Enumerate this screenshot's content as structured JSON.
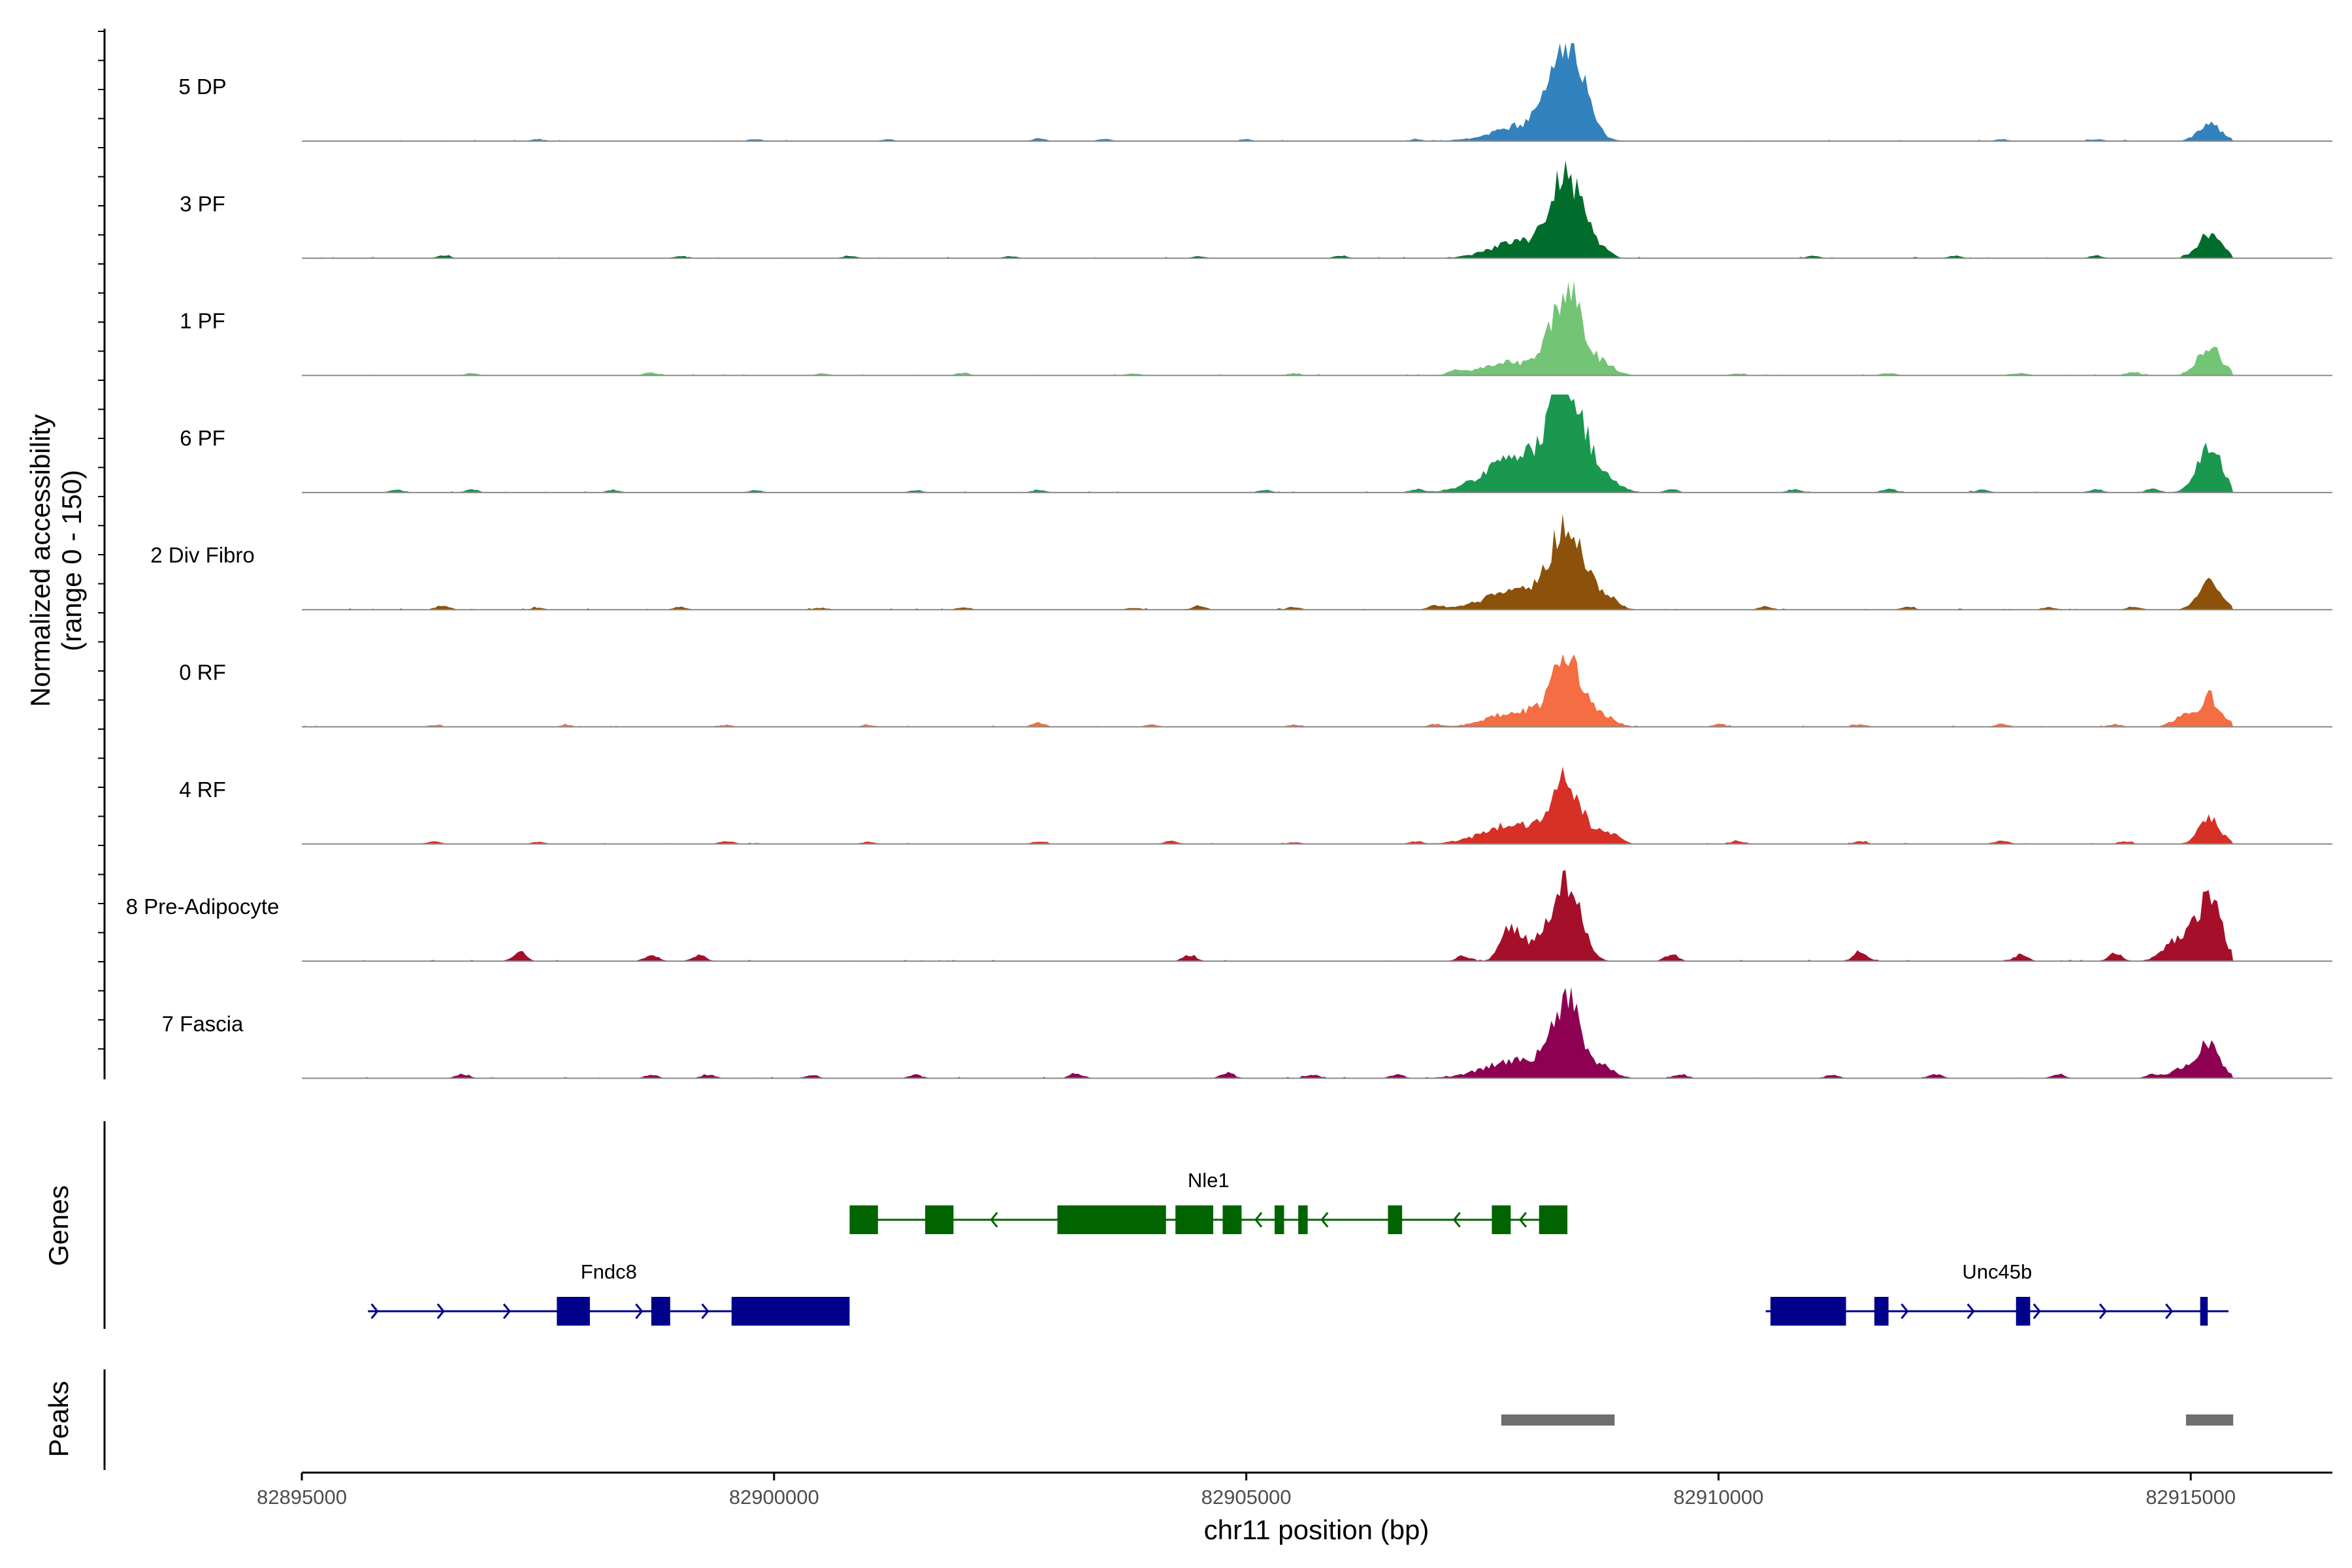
{
  "chart_data": {
    "type": "area",
    "region": {
      "chrom": "chr11",
      "start": 82895000,
      "end": 82916500
    },
    "xlabel": "chr11 position (bp)",
    "x_ticks": [
      82895000,
      82900000,
      82905000,
      82910000,
      82915000
    ],
    "x_tick_labels": [
      "82895000",
      "82900000",
      "82905000",
      "82910000",
      "82915000"
    ],
    "coverage_axis_title": [
      "Normalized accessibility",
      "(range 0 - 150)"
    ],
    "coverage_range": [
      0,
      150
    ],
    "genes_axis_title": "Genes",
    "peaks_axis_title": "Peaks",
    "tracks": [
      {
        "name": "5 DP",
        "color": "#3182bd",
        "peaks": [
          [
            82908400,
            150,
            170
          ],
          [
            82908000,
            25,
            350
          ],
          [
            82915200,
            25,
            120
          ]
        ],
        "bumps": [
          [
            82897500,
            3
          ],
          [
            82899800,
            3
          ],
          [
            82901200,
            3
          ],
          [
            82902800,
            4
          ],
          [
            82903500,
            3
          ],
          [
            82905000,
            3
          ],
          [
            82906800,
            3
          ],
          [
            82913000,
            3
          ],
          [
            82914000,
            3
          ]
        ]
      },
      {
        "name": "3 PF",
        "color": "#006d2c",
        "peaks": [
          [
            82908400,
            125,
            170
          ],
          [
            82907900,
            25,
            300
          ],
          [
            82915200,
            38,
            120
          ]
        ],
        "bumps": [
          [
            82896500,
            4
          ],
          [
            82899000,
            3
          ],
          [
            82900800,
            4
          ],
          [
            82902500,
            3
          ],
          [
            82904500,
            3
          ],
          [
            82906000,
            4
          ],
          [
            82908800,
            10
          ],
          [
            82911000,
            4
          ],
          [
            82912500,
            4
          ],
          [
            82914000,
            4
          ]
        ]
      },
      {
        "name": "1 PF",
        "color": "#74c476",
        "peaks": [
          [
            82908400,
            128,
            160
          ],
          [
            82907800,
            20,
            300
          ],
          [
            82908800,
            15,
            120
          ],
          [
            82915200,
            45,
            120
          ]
        ],
        "bumps": [
          [
            82896800,
            3
          ],
          [
            82898700,
            4
          ],
          [
            82900500,
            3
          ],
          [
            82902000,
            4
          ],
          [
            82903800,
            3
          ],
          [
            82905500,
            3
          ],
          [
            82907200,
            5
          ],
          [
            82910200,
            3
          ],
          [
            82911800,
            4
          ],
          [
            82913200,
            4
          ],
          [
            82914400,
            5
          ]
        ]
      },
      {
        "name": "6 PF",
        "color": "#1a9850",
        "peaks": [
          [
            82908400,
            150,
            180
          ],
          [
            82907900,
            55,
            350
          ],
          [
            82908800,
            18,
            150
          ],
          [
            82915200,
            68,
            130
          ]
        ],
        "bumps": [
          [
            82896000,
            4
          ],
          [
            82896800,
            5
          ],
          [
            82898300,
            4
          ],
          [
            82899800,
            4
          ],
          [
            82901500,
            4
          ],
          [
            82902800,
            4
          ],
          [
            82905200,
            4
          ],
          [
            82906800,
            5
          ],
          [
            82909500,
            5
          ],
          [
            82910800,
            5
          ],
          [
            82911800,
            6
          ],
          [
            82912800,
            5
          ],
          [
            82914000,
            5
          ],
          [
            82914600,
            6
          ]
        ]
      },
      {
        "name": "2 Div Fibro",
        "color": "#8c510a",
        "peaks": [
          [
            82908400,
            118,
            170
          ],
          [
            82907900,
            30,
            350
          ],
          [
            82908800,
            20,
            120
          ],
          [
            82915200,
            40,
            120
          ]
        ],
        "bumps": [
          [
            82896500,
            7
          ],
          [
            82897500,
            3
          ],
          [
            82899000,
            4
          ],
          [
            82900500,
            3
          ],
          [
            82902000,
            4
          ],
          [
            82903800,
            3
          ],
          [
            82904500,
            6
          ],
          [
            82905500,
            4
          ],
          [
            82907000,
            6
          ],
          [
            82910500,
            5
          ],
          [
            82912000,
            4
          ],
          [
            82913500,
            4
          ],
          [
            82914400,
            5
          ]
        ]
      },
      {
        "name": "0 RF",
        "color": "#f46d43",
        "peaks": [
          [
            82908400,
            115,
            150
          ],
          [
            82907900,
            25,
            300
          ],
          [
            82908800,
            15,
            120
          ],
          [
            82915200,
            45,
            120
          ],
          [
            82914900,
            15,
            100
          ]
        ],
        "bumps": [
          [
            82896400,
            3
          ],
          [
            82897800,
            3
          ],
          [
            82899500,
            3
          ],
          [
            82901000,
            3
          ],
          [
            82902800,
            6
          ],
          [
            82904000,
            3
          ],
          [
            82905500,
            3
          ],
          [
            82907000,
            4
          ],
          [
            82910000,
            4
          ],
          [
            82911500,
            4
          ],
          [
            82913000,
            5
          ],
          [
            82914200,
            4
          ]
        ]
      },
      {
        "name": "4 RF",
        "color": "#d73027",
        "peaks": [
          [
            82908400,
            90,
            140
          ],
          [
            82907900,
            32,
            350
          ],
          [
            82908800,
            20,
            120
          ],
          [
            82915200,
            38,
            110
          ]
        ],
        "bumps": [
          [
            82896400,
            4
          ],
          [
            82897500,
            3
          ],
          [
            82899500,
            5
          ],
          [
            82901000,
            3
          ],
          [
            82902800,
            4
          ],
          [
            82904200,
            5
          ],
          [
            82905500,
            3
          ],
          [
            82906800,
            4
          ],
          [
            82910200,
            5
          ],
          [
            82911500,
            4
          ],
          [
            82913000,
            5
          ],
          [
            82914300,
            4
          ]
        ]
      },
      {
        "name": "8 Pre-Adipocyte",
        "color": "#a50f2a",
        "peaks": [
          [
            82908400,
            118,
            140
          ],
          [
            82907800,
            52,
            100
          ],
          [
            82908100,
            30,
            140
          ],
          [
            82915200,
            95,
            120
          ],
          [
            82914900,
            35,
            160
          ]
        ],
        "bumps": [
          [
            82897300,
            13
          ],
          [
            82898700,
            10
          ],
          [
            82899200,
            10
          ],
          [
            82904400,
            10
          ],
          [
            82907300,
            8
          ],
          [
            82909500,
            10
          ],
          [
            82911500,
            15
          ],
          [
            82913200,
            10
          ],
          [
            82914200,
            12
          ]
        ]
      },
      {
        "name": "7 Fascia",
        "color": "#8e0152",
        "peaks": [
          [
            82908400,
            108,
            150
          ],
          [
            82907900,
            28,
            350
          ],
          [
            82908800,
            14,
            120
          ],
          [
            82915200,
            55,
            110
          ],
          [
            82914900,
            15,
            120
          ]
        ],
        "bumps": [
          [
            82896700,
            6
          ],
          [
            82898700,
            5
          ],
          [
            82899300,
            6
          ],
          [
            82900400,
            5
          ],
          [
            82901500,
            5
          ],
          [
            82903200,
            8
          ],
          [
            82904800,
            8
          ],
          [
            82905700,
            5
          ],
          [
            82906600,
            6
          ],
          [
            82909600,
            6
          ],
          [
            82911200,
            5
          ],
          [
            82912300,
            6
          ],
          [
            82913600,
            6
          ],
          [
            82914600,
            6
          ]
        ]
      }
    ],
    "genes": [
      {
        "name": "Nle1",
        "strand": "-",
        "start": 82900800,
        "end": 82908400,
        "color": "#006400",
        "row": 0,
        "exons": [
          [
            82900800,
            82901100
          ],
          [
            82901600,
            82901900
          ],
          [
            82903000,
            82904150
          ],
          [
            82904250,
            82904650
          ],
          [
            82904750,
            82904950
          ],
          [
            82905300,
            82905400
          ],
          [
            82905550,
            82905650
          ],
          [
            82906500,
            82906650
          ],
          [
            82907600,
            82907800
          ],
          [
            82908100,
            82908400
          ]
        ]
      },
      {
        "name": "Fndc8",
        "strand": "+",
        "start": 82895700,
        "end": 82900800,
        "color": "#00008b",
        "row": 1,
        "exons": [
          [
            82897700,
            82898050
          ],
          [
            82898700,
            82898900
          ],
          [
            82899550,
            82900800
          ]
        ]
      },
      {
        "name": "Unc45b",
        "strand": "+",
        "start": 82910500,
        "end": 82915400,
        "color": "#00008b",
        "row": 1,
        "exons": [
          [
            82910550,
            82911350
          ],
          [
            82911650,
            82911800
          ],
          [
            82913150,
            82913300
          ],
          [
            82915100,
            82915180
          ]
        ]
      }
    ],
    "peaks": [
      [
        82907700,
        82908900
      ],
      [
        82914950,
        82915450
      ]
    ]
  }
}
